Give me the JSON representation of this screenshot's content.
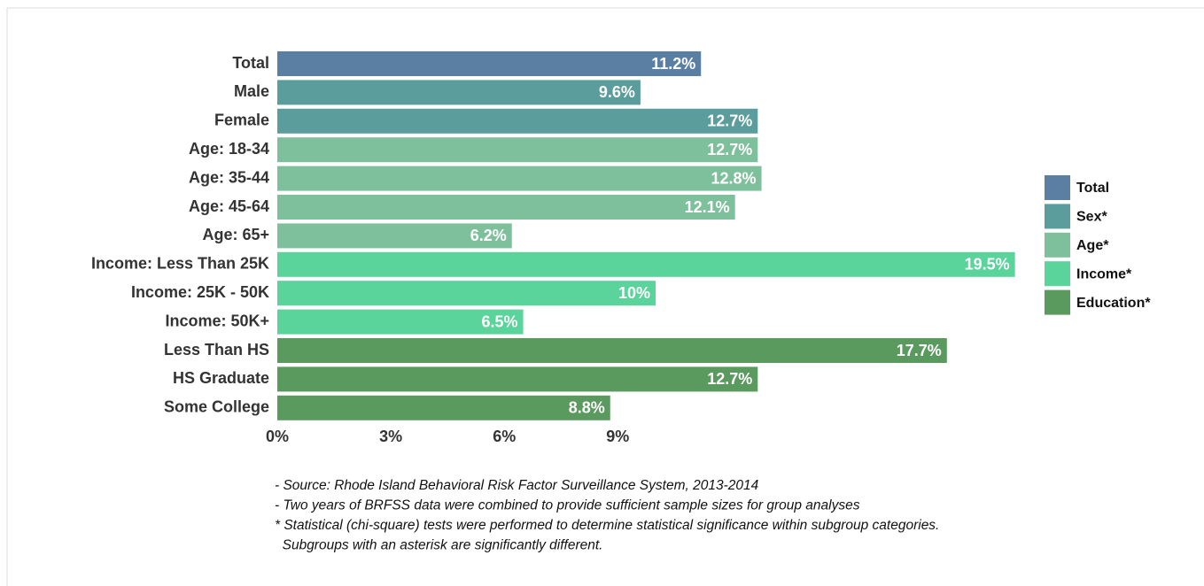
{
  "chart_data": {
    "type": "bar",
    "orientation": "horizontal",
    "categories": [
      "Total",
      "Male",
      "Female",
      "Age: 18-34",
      "Age: 35-44",
      "Age: 45-64",
      "Age: 65+",
      "Income: Less Than 25K",
      "Income: 25K - 50K",
      "Income: 50K+",
      "Less Than HS",
      "HS Graduate",
      "Some College"
    ],
    "series": [
      {
        "name": "Total",
        "color": "#5b7fa3",
        "values": [
          11.2,
          null,
          null,
          null,
          null,
          null,
          null,
          null,
          null,
          null,
          null,
          null,
          null
        ],
        "value_labels": [
          "11.2%",
          null,
          null,
          null,
          null,
          null,
          null,
          null,
          null,
          null,
          null,
          null,
          null
        ]
      },
      {
        "name": "Sex*",
        "color": "#5b9c9c",
        "values": [
          null,
          9.6,
          12.7,
          null,
          null,
          null,
          null,
          null,
          null,
          null,
          null,
          null,
          null
        ],
        "value_labels": [
          null,
          "9.6%",
          "12.7%",
          null,
          null,
          null,
          null,
          null,
          null,
          null,
          null,
          null,
          null
        ]
      },
      {
        "name": "Age*",
        "color": "#7fc09c",
        "values": [
          null,
          null,
          null,
          12.7,
          12.8,
          12.1,
          6.2,
          null,
          null,
          null,
          null,
          null,
          null
        ],
        "value_labels": [
          null,
          null,
          null,
          "12.7%",
          "12.8%",
          "12.1%",
          "6.2%",
          null,
          null,
          null,
          null,
          null,
          null
        ]
      },
      {
        "name": "Income*",
        "color": "#5ad49a",
        "values": [
          null,
          null,
          null,
          null,
          null,
          null,
          null,
          19.5,
          10,
          6.5,
          null,
          null,
          null
        ],
        "value_labels": [
          null,
          null,
          null,
          null,
          null,
          null,
          null,
          "19.5%",
          "10%",
          "6.5%",
          null,
          null,
          null
        ]
      },
      {
        "name": "Education*",
        "color": "#5a9a5e",
        "values": [
          null,
          null,
          null,
          null,
          null,
          null,
          null,
          null,
          null,
          null,
          17.7,
          12.7,
          8.8
        ],
        "value_labels": [
          null,
          null,
          null,
          null,
          null,
          null,
          null,
          null,
          null,
          null,
          "17.7%",
          "12.7%",
          "8.8%"
        ]
      }
    ],
    "xlim": [
      0,
      20
    ],
    "xticks": [
      {
        "value": 0,
        "label": "0%"
      },
      {
        "value": 3,
        "label": "3%"
      },
      {
        "value": 6,
        "label": "6%"
      },
      {
        "value": 9,
        "label": "9%"
      }
    ],
    "legend": "right",
    "notes": [
      "- Source: Rhode Island Behavioral Risk Factor Surveillance System, 2013-2014",
      "- Two years of BRFSS data were combined to provide sufficient sample sizes for group analyses",
      "* Statistical (chi-square) tests were performed to determine statistical significance within subgroup categories.",
      "  Subgroups with an asterisk are significantly different."
    ]
  }
}
